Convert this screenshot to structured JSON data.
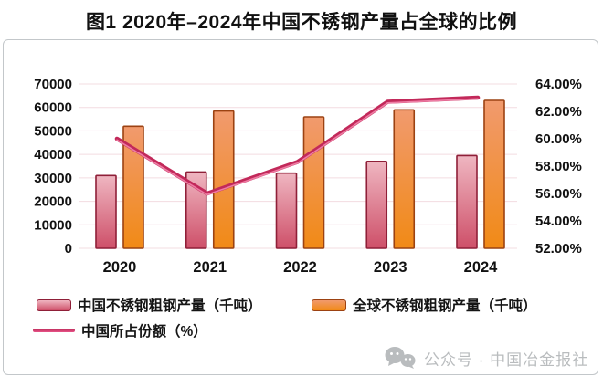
{
  "title": "图1 2020年–2024年中国不锈钢产量占全球的比例",
  "watermark": {
    "icon": "wechat-icon",
    "text": "公众号 · 中国冶金报社"
  },
  "chart_data": {
    "type": "bar",
    "subtype": "grouped-bars-with-line-overlay",
    "title": "图1 2020年–2024年中国不锈钢产量占全球的比例",
    "categories": [
      "2020",
      "2021",
      "2022",
      "2023",
      "2024"
    ],
    "series": [
      {
        "name": "中国不锈钢粗钢产量（千吨）",
        "type": "bar",
        "axis": "left",
        "values": [
          31000,
          32500,
          32000,
          37000,
          39500
        ],
        "color_top": "#efb6c1",
        "color_bottom": "#ce5069",
        "border_color": "#8f1f38"
      },
      {
        "name": "全球不锈钢粗钢产量（千吨）",
        "type": "bar",
        "axis": "left",
        "values": [
          52000,
          58500,
          56000,
          59000,
          63000
        ],
        "color_top": "#f19a6e",
        "color_bottom": "#f18a16",
        "border_color": "#9c4212"
      },
      {
        "name": "中国所占份额（%）",
        "type": "line",
        "axis": "right",
        "values": [
          60.0,
          56.0,
          58.3,
          62.7,
          63.0
        ],
        "color": "#c2295a",
        "highlight_color": "#ee7ca4"
      }
    ],
    "left_axis": {
      "min": 0,
      "max": 70000,
      "step": 10000,
      "ticks": [
        "70000",
        "60000",
        "50000",
        "40000",
        "30000",
        "20000",
        "10000",
        "0"
      ]
    },
    "right_axis": {
      "min": 52,
      "max": 64,
      "step": 2,
      "ticks": [
        "64.00%",
        "62.00%",
        "60.00%",
        "58.00%",
        "56.00%",
        "54.00%",
        "52.00%"
      ]
    },
    "grid": true,
    "gridline_color": "#f3dce1",
    "legend_position": "bottom",
    "text_color": "#111111"
  }
}
